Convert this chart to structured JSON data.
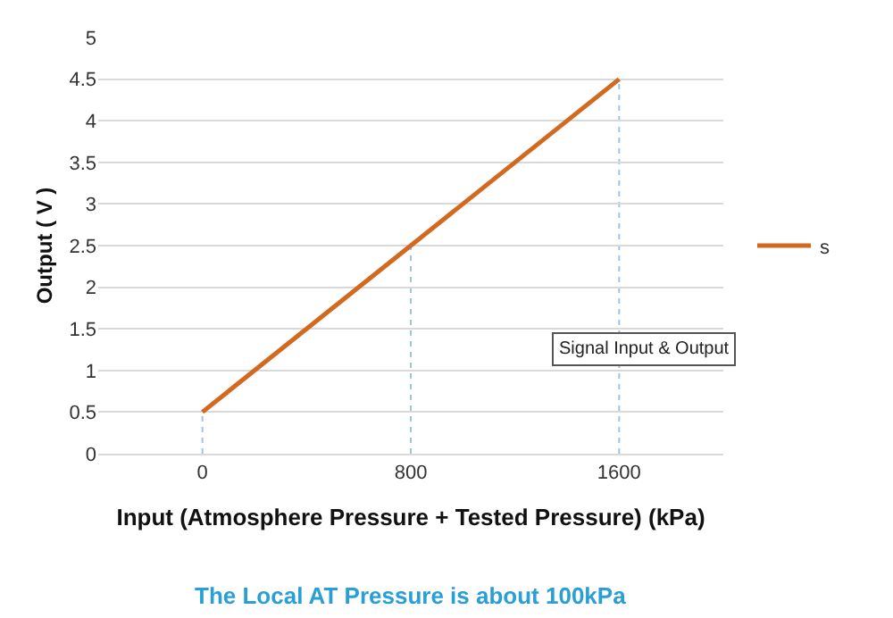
{
  "chart_data": {
    "type": "line",
    "xlabel": "Input (Atmosphere Pressure + Tested Pressure) (kPa)",
    "ylabel": "Output ( V )",
    "x": [
      0,
      800,
      1600
    ],
    "series": [
      {
        "name": "s",
        "color": "#d2691e",
        "values": [
          0.5,
          2.5,
          4.5
        ]
      }
    ],
    "xlim": [
      -400,
      2000
    ],
    "xticks": [
      0,
      800,
      1600
    ],
    "ylim": [
      0,
      5
    ],
    "yticks": [
      0,
      0.5,
      1,
      1.5,
      2,
      2.5,
      3,
      3.5,
      4,
      4.5,
      5
    ],
    "grid": "y",
    "legend": "right",
    "marker": "none",
    "line_style": "solid",
    "ref_lines": [
      {
        "axis": "x",
        "value": 0,
        "color": "#9dc3e6",
        "line_style": "dotted"
      },
      {
        "axis": "x",
        "value": 800,
        "color": "#9dc3e6",
        "line_style": "dotted"
      },
      {
        "axis": "x",
        "value": 1600,
        "color": "#9dc3e6",
        "line_style": "dotted"
      }
    ],
    "annotations": [
      "Signal Input & Output",
      "The Local AT Pressure is about 100kPa"
    ]
  }
}
